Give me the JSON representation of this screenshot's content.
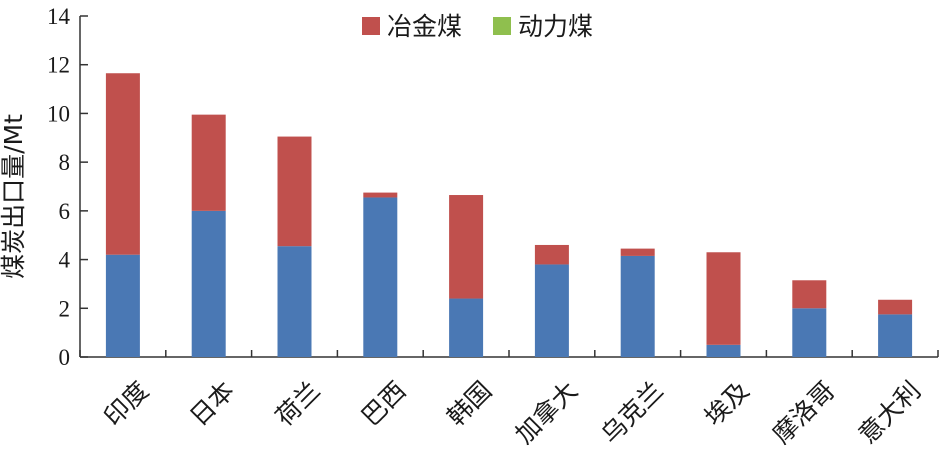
{
  "chart_data": {
    "type": "bar",
    "stacked": true,
    "categories": [
      "印度",
      "日本",
      "荷兰",
      "巴西",
      "韩国",
      "加拿大",
      "乌克兰",
      "埃及",
      "摩洛哥",
      "意大利"
    ],
    "series": [
      {
        "color": "#4a78b4",
        "values": [
          4.2,
          6.0,
          4.55,
          6.55,
          2.4,
          3.8,
          4.15,
          0.5,
          2.0,
          1.75
        ]
      },
      {
        "name": "冶金煤",
        "color": "#c0504d",
        "values": [
          7.45,
          3.95,
          4.5,
          0.2,
          4.25,
          0.8,
          0.3,
          3.8,
          1.15,
          0.6
        ]
      },
      {
        "name": "动力煤",
        "color": "#8fbf4e",
        "values": [
          0,
          0,
          0,
          0,
          0,
          0,
          0,
          0,
          0,
          0
        ]
      }
    ],
    "ylabel": "煤炭出口量/Mt",
    "ylim": [
      0,
      14
    ],
    "yticks": [
      0,
      2,
      4,
      6,
      8,
      10,
      12,
      14
    ],
    "legend_position": "top-center",
    "grid": false
  }
}
